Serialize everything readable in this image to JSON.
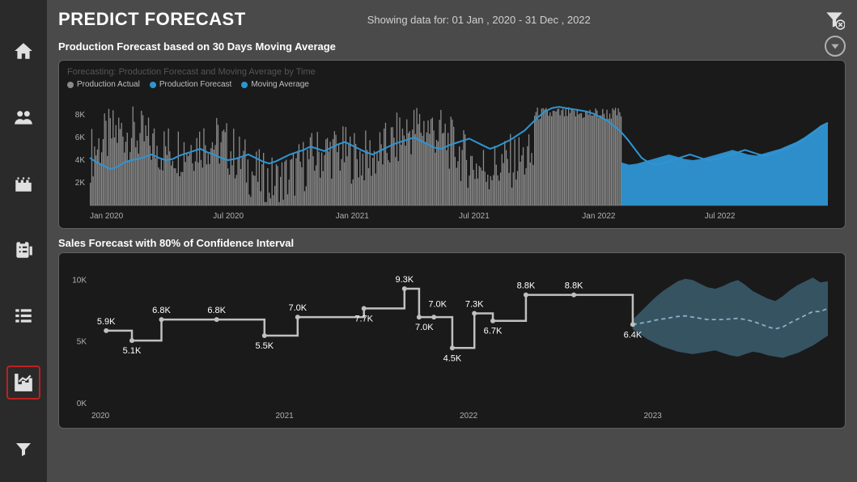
{
  "page_title": "PREDICT FORECAST",
  "date_range_prefix": "Showing data for: ",
  "date_range_value": "01 Jan , 2020 - 31 Dec , 2022",
  "sidebar": {
    "items": [
      {
        "name": "home",
        "active": false
      },
      {
        "name": "users",
        "active": false
      },
      {
        "name": "inventory",
        "active": false
      },
      {
        "name": "reports",
        "active": false
      },
      {
        "name": "tables",
        "active": false
      },
      {
        "name": "forecast",
        "active": true
      },
      {
        "name": "filter",
        "active": false
      }
    ]
  },
  "chart1": {
    "title": "Production Forecast based on 30 Days Moving Average",
    "subtitle": "Forecasting: Production Forecast and Moving Average by Time",
    "type": "combo-bar-line-area",
    "legend": [
      {
        "label": "Production Actual",
        "color": "#8a8a8a"
      },
      {
        "label": "Production Forecast",
        "color": "#2e95d3"
      },
      {
        "label": "Moving Average",
        "color": "#2e95d3"
      }
    ],
    "y_ticks": [
      "2K",
      "4K",
      "6K",
      "8K"
    ],
    "y_values": [
      2000,
      4000,
      6000,
      8000
    ],
    "ylim": [
      0,
      9500
    ],
    "x_ticks": [
      "Jan 2020",
      "Jul 2020",
      "Jan 2021",
      "Jul 2021",
      "Jan 2022",
      "Jul 2022"
    ],
    "x_positions": [
      0,
      0.167,
      0.333,
      0.5,
      0.667,
      0.833
    ],
    "colors": {
      "actual_bar": "#8a8a8a",
      "forecast_area": "#2e95d3",
      "moving_avg_line": "#2e95d3",
      "background": "#1a1a1a",
      "grid": "#333333",
      "axis_text": "#b0b0b0"
    },
    "moving_avg_series": [
      4200,
      3800,
      3500,
      3200,
      3400,
      3800,
      4000,
      4100,
      4300,
      4500,
      4200,
      4000,
      4100,
      4400,
      4600,
      4800,
      5000,
      4700,
      4500,
      4200,
      4000,
      4100,
      4300,
      4500,
      4200,
      3900,
      3700,
      3900,
      4200,
      4500,
      4700,
      4900,
      5200,
      5000,
      4800,
      5100,
      5400,
      5600,
      5300,
      5000,
      4700,
      4500,
      4800,
      5100,
      5400,
      5600,
      5800,
      6000,
      5700,
      5400,
      5100,
      5000,
      5300,
      5500,
      5700,
      5900,
      5600,
      5300,
      5000,
      5200,
      5500,
      5800,
      6200,
      6600,
      7200,
      7800,
      8300,
      8600,
      8700,
      8600,
      8500,
      8400,
      8300,
      8100,
      7800,
      7500,
      7000,
      6500,
      5800,
      5000,
      4200,
      3800,
      3600,
      3700,
      3900,
      4100,
      4300,
      4500,
      4300,
      4100,
      4000,
      4100,
      4300,
      4500,
      4700,
      4900,
      4700,
      4500,
      4400,
      4600,
      4800,
      5000,
      5300,
      5600,
      6000,
      6500,
      7000,
      7300
    ],
    "actual_bars_sample": "dense-random-0-8500-until-0.72",
    "forecast_area_start_x": 0.72,
    "forecast_area_series": [
      3800,
      3600,
      3700,
      3900,
      4100,
      4300,
      4500,
      4300,
      4100,
      4000,
      4100,
      4300,
      4500,
      4700,
      4900,
      4700,
      4500,
      4400,
      4600,
      4800,
      5000,
      5300,
      5600,
      6000,
      6500,
      7000,
      7300
    ]
  },
  "chart2": {
    "title": "Sales Forecast with 80% of Confidence Interval",
    "type": "step-line-with-cone",
    "y_ticks": [
      "0K",
      "5K",
      "10K"
    ],
    "y_values": [
      0,
      5000,
      10000
    ],
    "ylim": [
      0,
      11000
    ],
    "x_ticks": [
      "2020",
      "2021",
      "2022",
      "2023"
    ],
    "x_positions": [
      0,
      0.25,
      0.5,
      0.75
    ],
    "colors": {
      "step_line": "#c0c0c0",
      "cone_fill": "#3a5a6a",
      "cone_dash": "#8ab0c8",
      "background": "#1a1a1a",
      "axis_text": "#b0b0b0",
      "value_text": "#ffffff"
    },
    "step_points": [
      {
        "x": 0.02,
        "y": 5900,
        "label": "5.9K",
        "lx": 0.02,
        "ly": 5900,
        "lpos": "above"
      },
      {
        "x": 0.055,
        "y": 5100,
        "label": "5.1K",
        "lx": 0.055,
        "ly": 5100,
        "lpos": "below"
      },
      {
        "x": 0.095,
        "y": 6800,
        "label": "6.8K",
        "lx": 0.095,
        "ly": 6800,
        "lpos": "above"
      },
      {
        "x": 0.17,
        "y": 6800,
        "label": "6.8K",
        "lx": 0.17,
        "ly": 6800,
        "lpos": "above"
      },
      {
        "x": 0.235,
        "y": 5500,
        "label": "5.5K",
        "lx": 0.235,
        "ly": 5500,
        "lpos": "below"
      },
      {
        "x": 0.28,
        "y": 7000,
        "label": "7.0K",
        "lx": 0.28,
        "ly": 7000,
        "lpos": "above"
      },
      {
        "x": 0.37,
        "y": 7700,
        "label": "7.7K",
        "lx": 0.37,
        "ly": 7700,
        "lpos": "below"
      },
      {
        "x": 0.425,
        "y": 9300,
        "label": "9.3K",
        "lx": 0.425,
        "ly": 9300,
        "lpos": "above"
      },
      {
        "x": 0.445,
        "y": 7000,
        "label": "7.0K",
        "lx": 0.452,
        "ly": 7000,
        "lpos": "below"
      },
      {
        "x": 0.465,
        "y": 7000,
        "label": "7.0K",
        "lx": 0.47,
        "ly": 7300,
        "lpos": "above"
      },
      {
        "x": 0.49,
        "y": 4500,
        "label": "4.5K",
        "lx": 0.49,
        "ly": 4500,
        "lpos": "below"
      },
      {
        "x": 0.52,
        "y": 7300,
        "label": "7.3K",
        "lx": 0.52,
        "ly": 7300,
        "lpos": "above"
      },
      {
        "x": 0.545,
        "y": 6700,
        "label": "6.7K",
        "lx": 0.545,
        "ly": 6700,
        "lpos": "below"
      },
      {
        "x": 0.59,
        "y": 8800,
        "label": "8.8K",
        "lx": 0.59,
        "ly": 8800,
        "lpos": "above"
      },
      {
        "x": 0.655,
        "y": 8800,
        "label": "8.8K",
        "lx": 0.655,
        "ly": 8800,
        "lpos": "above"
      },
      {
        "x": 0.735,
        "y": 6400,
        "label": "6.4K",
        "lx": 0.735,
        "ly": 6400,
        "lpos": "below"
      }
    ],
    "cone_start_x": 0.735,
    "cone_upper": [
      6800,
      7400,
      8000,
      8600,
      9100,
      9500,
      9900,
      10100,
      10000,
      9700,
      9400,
      9300,
      9500,
      9800,
      10000,
      9600,
      9100,
      8800,
      8500,
      8300,
      8700,
      9200,
      9600,
      9900,
      10200,
      9800,
      9900
    ],
    "cone_lower": [
      6000,
      5600,
      5200,
      4900,
      4600,
      4400,
      4200,
      4100,
      4000,
      4100,
      4200,
      4300,
      4100,
      3900,
      3800,
      4000,
      4200,
      4100,
      3900,
      3800,
      3700,
      3900,
      4100,
      4400,
      4700,
      5100,
      5500
    ],
    "cone_mean": [
      6400,
      6500,
      6600,
      6750,
      6850,
      6950,
      7050,
      7100,
      7000,
      6900,
      6800,
      6800,
      6800,
      6850,
      6900,
      6800,
      6650,
      6450,
      6200,
      6050,
      6200,
      6550,
      6850,
      7150,
      7450,
      7450,
      7700
    ]
  }
}
